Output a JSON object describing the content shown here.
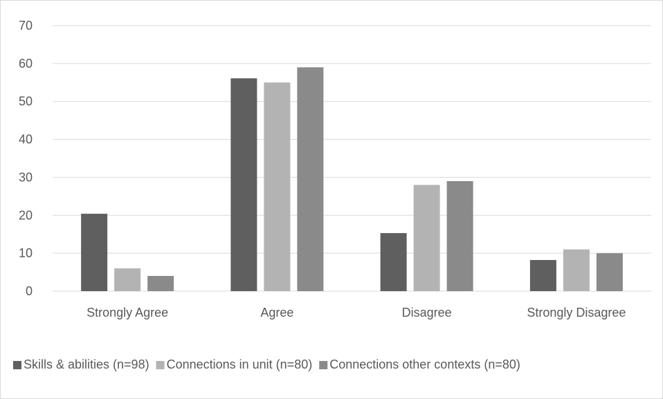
{
  "chart_data": {
    "type": "bar",
    "title": "",
    "xlabel": "",
    "ylabel": "",
    "categories": [
      "Strongly Agree",
      "Agree",
      "Disagree",
      "Strongly Disagree"
    ],
    "ylim": [
      0,
      70
    ],
    "yticks": [
      0,
      10,
      20,
      30,
      40,
      50,
      60,
      70
    ],
    "grid": true,
    "legend_position": "bottom",
    "series": [
      {
        "name": "Skills & abilities (n=98)",
        "color": "#5f5f5f",
        "values": [
          20.4,
          56.1,
          15.3,
          8.2
        ]
      },
      {
        "name": "Connections in unit (n=80)",
        "color": "#b3b3b3",
        "values": [
          6,
          55,
          28,
          11
        ]
      },
      {
        "name": "Connections other contexts (n=80)",
        "color": "#8a8a8a",
        "values": [
          4,
          59,
          29,
          10
        ]
      }
    ]
  }
}
